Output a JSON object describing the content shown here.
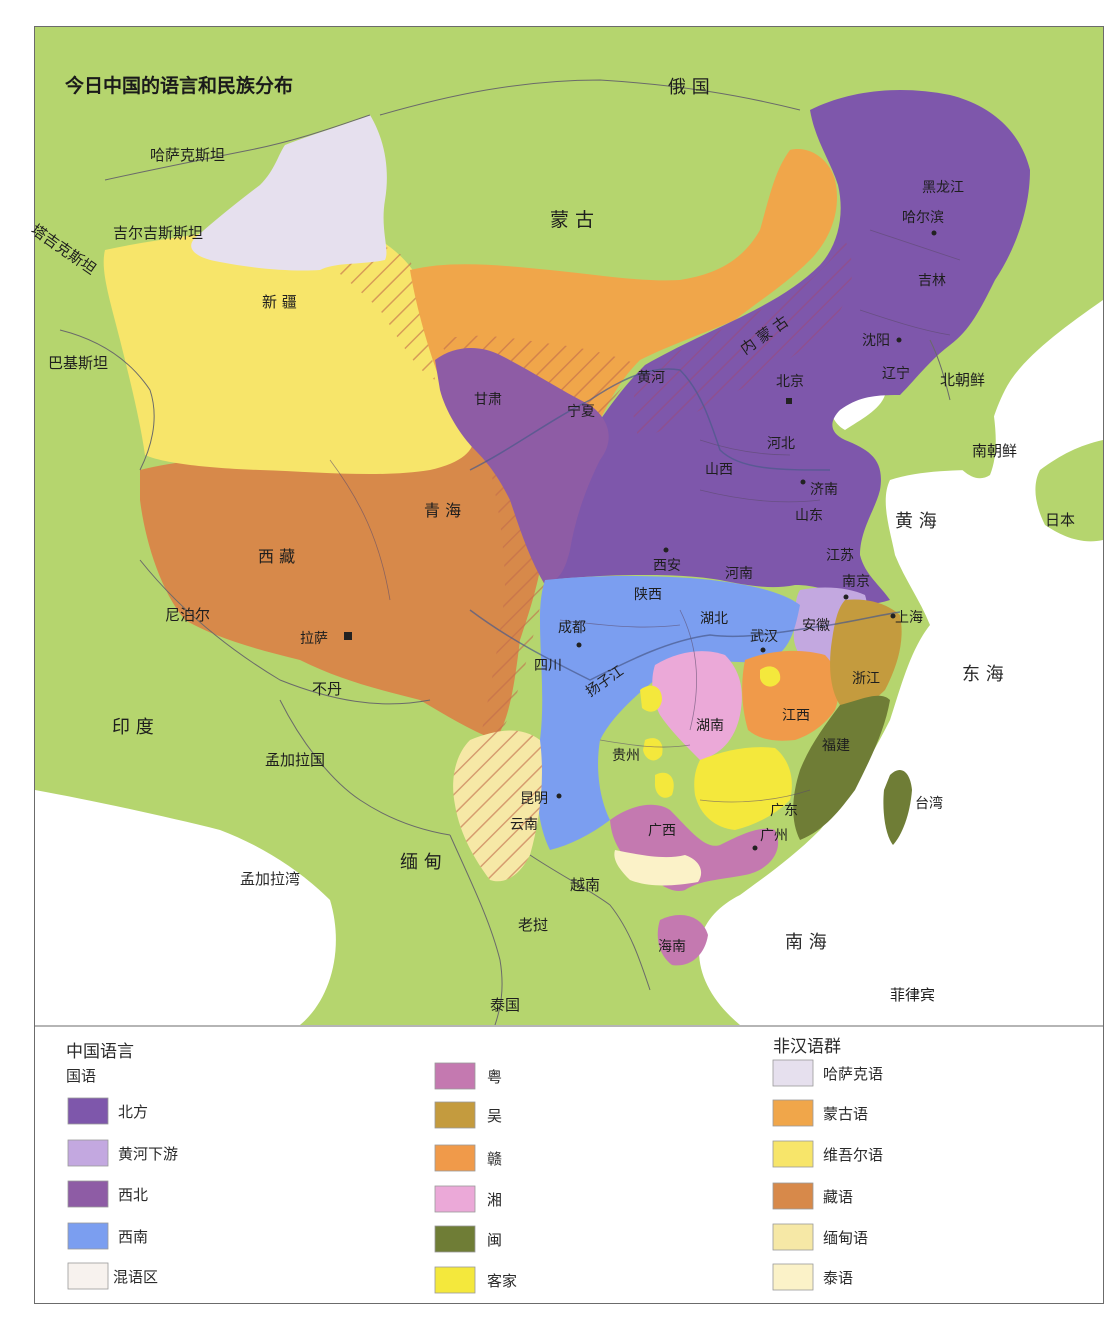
{
  "title": "今日中国的语言和民族分布",
  "countries": {
    "russia": "俄 国",
    "kazakhstan": "哈萨克斯坦",
    "kyrgyzstan": "吉尔吉斯斯坦",
    "tajikistan": "塔吉克斯坦",
    "pakistan": "巴基斯坦",
    "mongolia": "蒙 古",
    "nepal": "尼泊尔",
    "bhutan": "不丹",
    "india": "印 度",
    "bangladesh": "孟加拉国",
    "myanmar": "缅 甸",
    "vietnam": "越南",
    "laos": "老挝",
    "thailand": "泰国",
    "north_korea": "北朝鲜",
    "south_korea": "南朝鲜",
    "japan": "日本",
    "philippines": "菲律宾"
  },
  "seas": {
    "bay_of_bengal": "孟加拉湾",
    "yellow_sea": "黄 海",
    "east_sea": "东 海",
    "south_sea": "南 海"
  },
  "regions": {
    "xinjiang": "新 疆",
    "tibet": "西 藏",
    "qinghai": "青 海",
    "gansu": "甘肃",
    "ningxia": "宁夏",
    "inner_mongolia": "内 蒙 古",
    "heilongjiang": "黑龙江",
    "jilin": "吉林",
    "liaoning": "辽宁",
    "hebei": "河北",
    "shanxi": "山西",
    "shandong": "山东",
    "henan": "河南",
    "shaanxi": "陕西",
    "sichuan": "四川",
    "hubei": "湖北",
    "anhui": "安徽",
    "jiangsu": "江苏",
    "zhejiang": "浙江",
    "jiangxi": "江西",
    "hunan": "湖南",
    "guizhou": "贵州",
    "yunnan": "云南",
    "guangxi": "广西",
    "guangdong": "广东",
    "fujian": "福建",
    "taiwan": "台湾",
    "hainan": "海南"
  },
  "cities": {
    "harbin": "哈尔滨",
    "shenyang": "沈阳",
    "beijing": "北京",
    "jinan": "济南",
    "xian": "西安",
    "nanjing": "南京",
    "shanghai": "上海",
    "wuhan": "武汉",
    "chengdu": "成都",
    "kunming": "昆明",
    "guangzhou": "广州",
    "lhasa": "拉萨"
  },
  "rivers": {
    "yellow_river": "黄河",
    "yangtze": "扬子江"
  },
  "legend": {
    "chinese_title": "中国语言",
    "mandarin_title": "国语",
    "non_han_title": "非汉语群",
    "items": {
      "northern": "北方",
      "lower_yellow_river": "黄河下游",
      "northwestern": "西北",
      "southwestern": "西南",
      "mixed": "混语区",
      "yue": "粤",
      "wu": "吴",
      "gan": "赣",
      "xiang": "湘",
      "min": "闽",
      "hakka": "客家",
      "kazakh": "哈萨克语",
      "mongolian": "蒙古语",
      "uyghur": "维吾尔语",
      "tibetan": "藏语",
      "burmese": "缅甸语",
      "thai": "泰语"
    }
  },
  "colors": {
    "land": "#b5d56e",
    "sea": "#ffffff",
    "northern": "#7e57ab",
    "lower_yellow_river": "#c3a8e0",
    "northwestern": "#8e5ca5",
    "southwestern": "#7b9ef0",
    "mixed": "#f7f2ee",
    "yue": "#c479b0",
    "wu": "#c49b3e",
    "gan": "#f09a4a",
    "xiang": "#eba9d8",
    "min": "#6f7d36",
    "hakka": "#f4e83c",
    "kazakh": "#e6e0ee",
    "mongolian": "#f0a64a",
    "uyghur": "#f7e56a",
    "tibetan": "#d7894a",
    "burmese": "#f6e8a6",
    "thai": "#fbf2c8"
  }
}
